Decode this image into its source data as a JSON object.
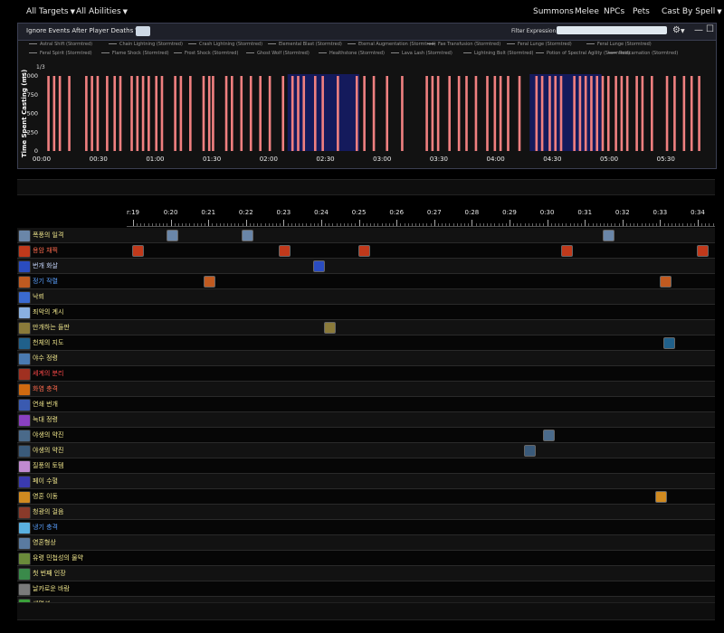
{
  "topbar": {
    "targets": "All Targets",
    "abilities": "All Abilities",
    "summons": "Summons",
    "melee": "Melee",
    "npcs": "NPCs",
    "pets": "Pets",
    "cast_by": "Cast By Spell"
  },
  "panel": {
    "ignore_label": "Ignore Events After Player Deaths",
    "filter_label": "Filter Expression:",
    "filter_value": "",
    "legend_row1": [
      "Astral Shift (Stormtred)",
      "Chain Lightning (Stormtred)",
      "Crash Lightning (Stormtred)",
      "Elemental Blast (Stormtred)",
      "Eternal Augmentation (Stormtred)",
      "Fae Transfusion (Stormtred)",
      "Feral Lunge (Stormtred)",
      "Feral Lunge (Stormtred)"
    ],
    "legend_row2": [
      "Feral Spirit (Stormtred)",
      "Flame Shock (Stormtred)",
      "Frost Shock (Stormtred)",
      "Ghost Wolf (Stormtred)",
      "Healthstone (Stormtred)",
      "Lava Lash (Stormtred)",
      "Lightning Bolt (Stormtred)",
      "Potion of Spectral Agility (Stormtred)",
      "Reincarnation (Stormtred)"
    ],
    "page_indicator": "1/3"
  },
  "chart_data": {
    "type": "bar",
    "ylabel": "Time Spent Casting (ms)",
    "ylim": [
      0,
      1000
    ],
    "yticks": [
      "1,000",
      "750",
      "500",
      "250",
      "0"
    ],
    "xticks": [
      "00:00",
      "00:30",
      "01:00",
      "01:30",
      "02:00",
      "02:30",
      "03:00",
      "03:30",
      "04:00",
      "04:30",
      "05:00",
      "05:30"
    ],
    "bar_color": "#f08080",
    "highlight_color": "#141a5c",
    "highlight_ranges": [
      [
        130,
        168
      ],
      [
        258,
        296
      ]
    ],
    "bar_seconds": [
      3,
      6,
      9,
      14,
      23,
      26,
      29,
      34,
      38,
      41,
      47,
      50,
      53,
      56,
      60,
      63,
      70,
      73,
      78,
      85,
      88,
      90,
      97,
      100,
      105,
      110,
      115,
      120,
      127,
      132,
      135,
      138,
      144,
      148,
      156,
      166,
      170,
      175,
      182,
      190,
      203,
      206,
      209,
      215,
      220,
      224,
      229,
      235,
      239,
      242,
      246,
      252,
      261,
      264,
      268,
      271,
      274,
      281,
      284,
      287,
      290,
      293,
      296,
      299,
      303,
      306,
      309,
      314,
      317,
      322,
      330,
      334,
      339,
      343,
      347
    ],
    "bar_values_ms": [
      1000,
      1000,
      1000,
      1000,
      1000,
      1000,
      1000,
      1000,
      1000,
      1000,
      1000,
      1000,
      1000,
      1000,
      1000,
      1000,
      1000,
      1000,
      1000,
      1000,
      1000,
      1000,
      1000,
      1000,
      1000,
      1000,
      1000,
      1000,
      1000,
      1000,
      1000,
      1000,
      1000,
      1000,
      1000,
      1000,
      1000,
      1000,
      1000,
      1000,
      1000,
      1000,
      1000,
      1000,
      1000,
      1000,
      1000,
      1000,
      1000,
      1000,
      1000,
      1000,
      1000,
      1000,
      1000,
      1000,
      1000,
      1000,
      1000,
      1000,
      1000,
      1000,
      1000,
      1000,
      1000,
      1000,
      1000,
      1000,
      1000,
      1000,
      1000,
      1000,
      1000,
      1000,
      1000
    ]
  },
  "timeline": {
    "ticks": [
      "r:19",
      "0:20",
      "0:21",
      "0:22",
      "0:23",
      "0:24",
      "0:25",
      "0:26",
      "0:27",
      "0:28",
      "0:29",
      "0:30",
      "0:31",
      "0:32",
      "0:33",
      "0:34"
    ],
    "spells": [
      {
        "name": "폭풍의 일격",
        "color": "#f0e68c",
        "icon": "#6a86a8",
        "casts": [
          19.9,
          21.9,
          31.5
        ]
      },
      {
        "name": "용암 채찍",
        "color": "#ff6a4d",
        "icon": "#c0391b",
        "casts": [
          19.0,
          22.9,
          25.0,
          30.4,
          34.0
        ]
      },
      {
        "name": "번개 화살",
        "color": "#c8d8ff",
        "icon": "#2a4cc0",
        "casts": [
          23.8
        ]
      },
      {
        "name": "정기 작렬",
        "color": "#5aa0ff",
        "icon": "#c05a20",
        "casts": [
          20.9,
          33.0
        ]
      },
      {
        "name": "낙뢰",
        "color": "#f0e68c",
        "icon": "#3a6ad0",
        "casts": []
      },
      {
        "name": "죄악의 계시",
        "color": "#f0e68c",
        "icon": "#8ab0e0",
        "casts": []
      },
      {
        "name": "만개하는 들판",
        "color": "#f0e68c",
        "icon": "#8a7a3a",
        "casts": [
          24.1
        ]
      },
      {
        "name": "천체의 지도",
        "color": "#f0e68c",
        "icon": "#20608a",
        "casts": [
          33.1
        ]
      },
      {
        "name": "야수 정령",
        "color": "#f0e68c",
        "icon": "#4a7ab0",
        "casts": []
      },
      {
        "name": "세계의 분리",
        "color": "#ff4a4a",
        "icon": "#a03020",
        "casts": []
      },
      {
        "name": "화염 충격",
        "color": "#ff6a4d",
        "icon": "#d06a10",
        "casts": []
      },
      {
        "name": "연쇄 번개",
        "color": "#f0e68c",
        "icon": "#3a5ab0",
        "casts": []
      },
      {
        "name": "늑대 정령",
        "color": "#f0e68c",
        "icon": "#8a40c0",
        "casts": []
      },
      {
        "name": "야생의 약진",
        "color": "#f0e68c",
        "icon": "#4a6a8a",
        "casts": [
          29.9
        ]
      },
      {
        "name": "야생의 약진",
        "color": "#f0e68c",
        "icon": "#3a5a7a",
        "casts": [
          29.4
        ]
      },
      {
        "name": "질풍의 토템",
        "color": "#f0e68c",
        "icon": "#c08ad0",
        "casts": []
      },
      {
        "name": "페이 수혈",
        "color": "#f0e68c",
        "icon": "#3a3ab0",
        "casts": []
      },
      {
        "name": "영혼 이동",
        "color": "#f0e68c",
        "icon": "#d08a20",
        "casts": [
          32.9
        ]
      },
      {
        "name": "청광의 걸음",
        "color": "#f0e68c",
        "icon": "#8a3a2a",
        "casts": []
      },
      {
        "name": "냉기 충격",
        "color": "#5aa0ff",
        "icon": "#5ab0e0",
        "casts": []
      },
      {
        "name": "영혼형상",
        "color": "#f0e68c",
        "icon": "#5a7aa0",
        "casts": []
      },
      {
        "name": "유령 민첩성의 물약",
        "color": "#f0e68c",
        "icon": "#6a8a3a",
        "casts": []
      },
      {
        "name": "첫 번째 인장",
        "color": "#f0e68c",
        "icon": "#3a8a4a",
        "casts": []
      },
      {
        "name": "날카로운 바람",
        "color": "#f0e68c",
        "icon": "#7a7a7a",
        "casts": []
      },
      {
        "name": "생명석",
        "color": "#f0e68c",
        "icon": "#3aa03a",
        "casts": []
      }
    ]
  }
}
